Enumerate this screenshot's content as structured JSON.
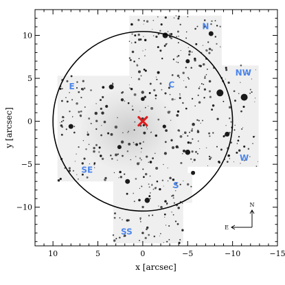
{
  "chart_data": {
    "type": "scatter",
    "xlabel": "x [arcsec]",
    "ylabel": "y [arcsec]",
    "xlim": [
      12,
      -15
    ],
    "ylim": [
      -14.5,
      13
    ],
    "x_ticks": [
      10,
      5,
      0,
      -5,
      -10,
      -15
    ],
    "y_ticks": [
      -10,
      -5,
      0,
      5,
      10
    ],
    "x_tick_labels": [
      "10",
      "5",
      "0",
      "−5",
      "−10",
      "−15"
    ],
    "y_tick_labels": [
      "−10",
      "−5",
      "0",
      "5",
      "10"
    ],
    "grid": false,
    "center_marker": {
      "x": 0,
      "y": 0,
      "symbol": "x",
      "color": "#e11d1d"
    },
    "circle": {
      "center": [
        0,
        0
      ],
      "radius": 10,
      "color": "#000000"
    },
    "pointings": [
      {
        "name": "N",
        "x": -7.0,
        "y": 11.0
      },
      {
        "name": "NW",
        "x": -11.2,
        "y": 5.6
      },
      {
        "name": "E",
        "x": 7.9,
        "y": 4.0
      },
      {
        "name": "C",
        "x": -3.2,
        "y": 4.2
      },
      {
        "name": "W",
        "x": -11.3,
        "y": -4.3
      },
      {
        "name": "SE",
        "x": 6.2,
        "y": -5.7
      },
      {
        "name": "S",
        "x": -3.7,
        "y": -7.5
      },
      {
        "name": "SS",
        "x": 1.8,
        "y": -12.9
      }
    ],
    "field_color": "#4d86ea"
  },
  "compass": {
    "north": "N",
    "east": "E"
  }
}
